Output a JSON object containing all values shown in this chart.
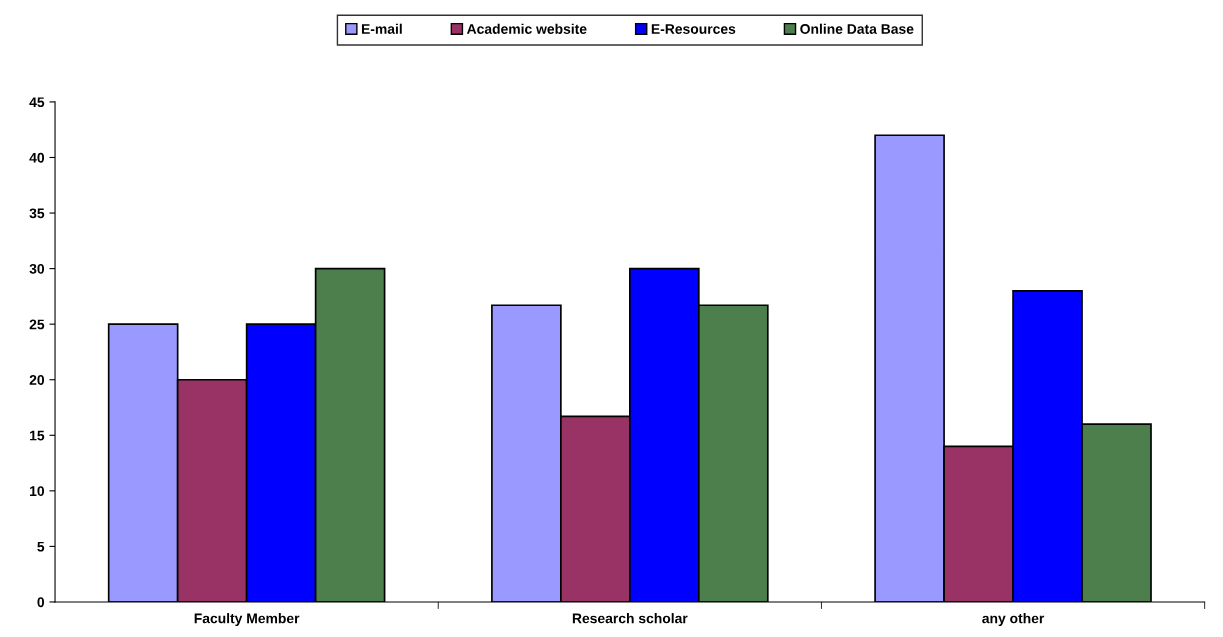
{
  "chart_data": {
    "type": "bar",
    "categories": [
      "Faculty Member",
      "Research scholar",
      "any other"
    ],
    "series": [
      {
        "name": "E-mail",
        "color": "#9999ff",
        "values": [
          25,
          26.7,
          42
        ]
      },
      {
        "name": "Academic website",
        "color": "#993366",
        "values": [
          20,
          16.7,
          14
        ]
      },
      {
        "name": "E-Resources",
        "color": "#0000ff",
        "values": [
          25,
          30,
          28
        ]
      },
      {
        "name": "Online Data Base",
        "color": "#4d7f4d",
        "values": [
          30,
          26.7,
          16
        ]
      }
    ],
    "ylim": [
      0,
      45
    ],
    "yticks": [
      0,
      5,
      10,
      15,
      20,
      25,
      30,
      35,
      40,
      45
    ],
    "grid": false,
    "legend": "top"
  }
}
